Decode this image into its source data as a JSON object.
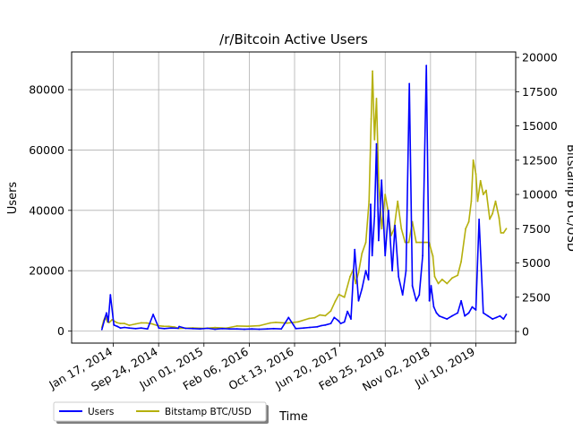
{
  "chart_data": {
    "type": "line",
    "title": "/r/Bitcoin Active Users",
    "xlabel": "Time",
    "ylabel": "Users",
    "y2label": "Bitstamp BTC/USD",
    "x_ticks": [
      "Jan 17, 2014",
      "Sep 24, 2014",
      "Jun 01, 2015",
      "Feb 06, 2016",
      "Oct 13, 2016",
      "Jun 20, 2017",
      "Feb 25, 2018",
      "Nov 02, 2018",
      "Jul 10, 2019"
    ],
    "y_ticks": [
      0,
      20000,
      40000,
      60000,
      80000
    ],
    "y2_ticks": [
      0,
      2500,
      5000,
      7500,
      10000,
      12500,
      15000,
      17500,
      20000
    ],
    "ylim": [
      -4000,
      92500
    ],
    "y2lim": [
      -850,
      20400
    ],
    "xlim": [
      "2013-06-01",
      "2020-02-15"
    ],
    "grid": true,
    "legend": {
      "position": "bottom-left"
    },
    "series": [
      {
        "name": "Users",
        "axis": "left",
        "color": "#0000ff",
        "x": [
          "2013-11-15",
          "2013-12-01",
          "2013-12-10",
          "2013-12-20",
          "2014-01-01",
          "2014-01-20",
          "2014-02-10",
          "2014-02-25",
          "2014-03-20",
          "2014-04-15",
          "2014-05-20",
          "2014-06-20",
          "2014-07-25",
          "2014-08-25",
          "2014-09-25",
          "2014-10-25",
          "2014-12-01",
          "2015-01-10",
          "2015-01-15",
          "2015-02-20",
          "2015-04-01",
          "2015-05-10",
          "2015-06-20",
          "2015-08-01",
          "2015-09-10",
          "2015-10-20",
          "2015-12-01",
          "2016-01-10",
          "2016-02-20",
          "2016-04-01",
          "2016-05-15",
          "2016-06-20",
          "2016-08-01",
          "2016-09-10",
          "2016-10-20",
          "2016-12-01",
          "2017-01-05",
          "2017-02-15",
          "2017-03-10",
          "2017-04-01",
          "2017-05-01",
          "2017-05-20",
          "2017-06-10",
          "2017-06-25",
          "2017-07-15",
          "2017-08-01",
          "2017-08-20",
          "2017-09-10",
          "2017-10-01",
          "2017-10-20",
          "2017-11-10",
          "2017-11-25",
          "2017-12-07",
          "2017-12-15",
          "2017-12-28",
          "2018-01-08",
          "2018-01-20",
          "2018-02-05",
          "2018-02-25",
          "2018-03-15",
          "2018-04-05",
          "2018-04-20",
          "2018-05-10",
          "2018-06-01",
          "2018-06-20",
          "2018-07-08",
          "2018-07-25",
          "2018-08-15",
          "2018-09-01",
          "2018-09-20",
          "2018-10-10",
          "2018-10-27",
          "2018-11-05",
          "2018-11-20",
          "2018-12-05",
          "2018-12-20",
          "2019-01-10",
          "2019-02-01",
          "2019-03-01",
          "2019-04-01",
          "2019-04-20",
          "2019-05-10",
          "2019-06-01",
          "2019-06-20",
          "2019-07-10",
          "2019-07-28",
          "2019-08-20",
          "2019-09-15",
          "2019-10-10",
          "2019-11-01",
          "2019-11-20",
          "2019-12-10",
          "2019-12-25"
        ],
        "values": [
          500,
          4000,
          6000,
          3000,
          12000,
          2000,
          1500,
          1000,
          1200,
          1000,
          800,
          1000,
          700,
          5500,
          1000,
          800,
          1000,
          900,
          1500,
          900,
          800,
          700,
          900,
          600,
          800,
          700,
          700,
          600,
          700,
          600,
          700,
          800,
          700,
          4500,
          800,
          1000,
          1200,
          1400,
          1800,
          2000,
          2500,
          4500,
          3500,
          2500,
          3000,
          6500,
          4000,
          27000,
          10000,
          14000,
          20000,
          17000,
          42000,
          25000,
          38000,
          62000,
          30000,
          50000,
          25000,
          40000,
          20000,
          35000,
          18000,
          12000,
          20000,
          82000,
          15000,
          10000,
          12000,
          25000,
          88000,
          10000,
          15000,
          8000,
          6000,
          5000,
          4500,
          4000,
          5000,
          6000,
          10000,
          5000,
          6000,
          8000,
          7000,
          37000,
          6000,
          5000,
          4000,
          4500,
          5000,
          4000,
          5500
        ]
      },
      {
        "name": "Bitstamp BTC/USD",
        "axis": "right",
        "color": "#b5b00d",
        "x": [
          "2013-11-15",
          "2013-11-25",
          "2013-12-04",
          "2013-12-15",
          "2013-12-25",
          "2014-01-10",
          "2014-02-05",
          "2014-02-25",
          "2014-03-20",
          "2014-04-15",
          "2014-05-20",
          "2014-06-20",
          "2014-07-20",
          "2014-08-20",
          "2014-09-20",
          "2014-10-20",
          "2014-11-20",
          "2014-12-20",
          "2015-01-15",
          "2015-02-20",
          "2015-04-01",
          "2015-06-01",
          "2015-08-01",
          "2015-10-01",
          "2015-12-01",
          "2016-02-01",
          "2016-04-01",
          "2016-06-01",
          "2016-07-01",
          "2016-09-01",
          "2016-11-01",
          "2017-01-01",
          "2017-02-01",
          "2017-03-01",
          "2017-04-01",
          "2017-05-01",
          "2017-05-25",
          "2017-06-15",
          "2017-07-15",
          "2017-08-15",
          "2017-09-01",
          "2017-09-15",
          "2017-10-01",
          "2017-10-20",
          "2017-11-10",
          "2017-11-28",
          "2017-12-10",
          "2017-12-17",
          "2017-12-28",
          "2018-01-08",
          "2018-01-20",
          "2018-02-06",
          "2018-02-25",
          "2018-03-10",
          "2018-03-30",
          "2018-04-15",
          "2018-05-05",
          "2018-05-25",
          "2018-06-15",
          "2018-07-05",
          "2018-07-25",
          "2018-08-15",
          "2018-09-05",
          "2018-10-01",
          "2018-10-25",
          "2018-11-15",
          "2018-11-25",
          "2018-12-15",
          "2019-01-05",
          "2019-02-01",
          "2019-03-01",
          "2019-04-01",
          "2019-04-20",
          "2019-05-15",
          "2019-06-01",
          "2019-06-15",
          "2019-06-26",
          "2019-07-10",
          "2019-07-20",
          "2019-08-05",
          "2019-08-20",
          "2019-09-05",
          "2019-09-25",
          "2019-10-10",
          "2019-10-27",
          "2019-11-15",
          "2019-11-25",
          "2019-12-10",
          "2019-12-25"
        ],
        "values": [
          300,
          800,
          1100,
          700,
          650,
          850,
          650,
          580,
          580,
          450,
          550,
          630,
          620,
          550,
          420,
          380,
          370,
          330,
          220,
          240,
          260,
          230,
          280,
          240,
          400,
          380,
          420,
          620,
          670,
          610,
          700,
          950,
          1000,
          1200,
          1150,
          1500,
          2200,
          2700,
          2500,
          4000,
          4500,
          3500,
          4300,
          5700,
          6500,
          9500,
          15500,
          19000,
          14000,
          17000,
          11000,
          7500,
          10000,
          9000,
          7000,
          7500,
          9500,
          7500,
          6500,
          6500,
          8000,
          6500,
          6500,
          6500,
          6500,
          5500,
          4000,
          3500,
          3800,
          3500,
          3900,
          4100,
          5100,
          7500,
          8000,
          9500,
          12500,
          11500,
          9500,
          11000,
          10000,
          10300,
          8200,
          8600,
          9500,
          8300,
          7200,
          7200,
          7500
        ]
      }
    ]
  }
}
